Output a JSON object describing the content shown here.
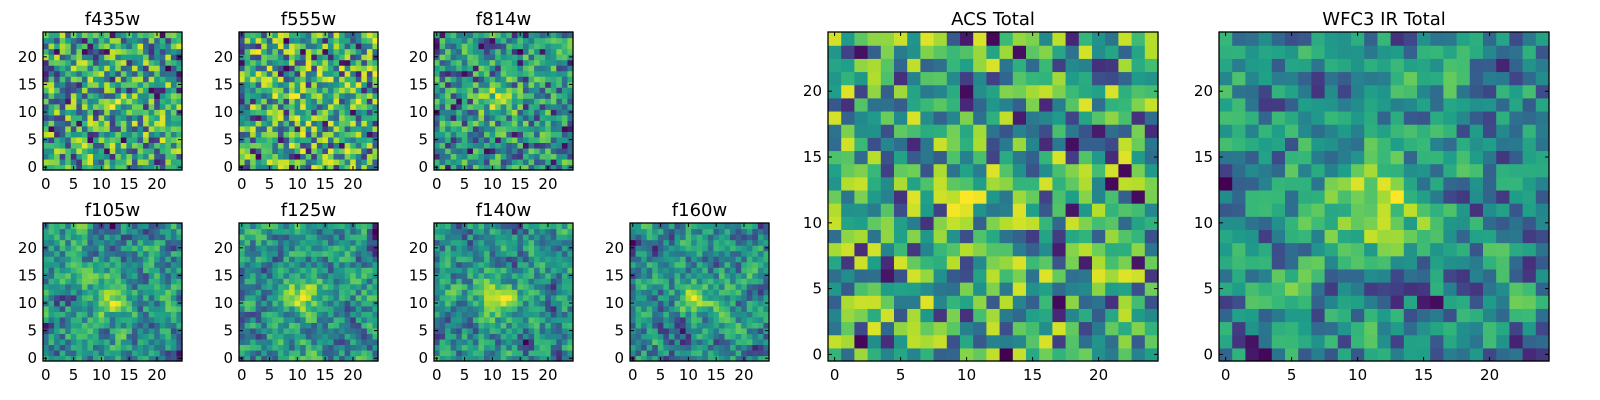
{
  "chart_data": [
    {
      "type": "heatmap",
      "title": "f435w",
      "xticks": [
        0,
        5,
        10,
        15,
        20
      ],
      "yticks": [
        0,
        5,
        10,
        15,
        20
      ],
      "xlim": [
        0,
        24
      ],
      "ylim": [
        0,
        24
      ],
      "grid_size": 25,
      "colormap": "viridis",
      "seed": 11,
      "blob_strength": 0.1,
      "blob_center": [
        12,
        12
      ],
      "smooth": 0
    },
    {
      "type": "heatmap",
      "title": "f555w",
      "xticks": [
        0,
        5,
        10,
        15,
        20
      ],
      "yticks": [
        0,
        5,
        10,
        15,
        20
      ],
      "xlim": [
        0,
        24
      ],
      "ylim": [
        0,
        24
      ],
      "grid_size": 25,
      "colormap": "viridis",
      "seed": 23,
      "blob_strength": 0.1,
      "blob_center": [
        12,
        12
      ],
      "smooth": 0
    },
    {
      "type": "heatmap",
      "title": "f814w",
      "xticks": [
        0,
        5,
        10,
        15,
        20
      ],
      "yticks": [
        0,
        5,
        10,
        15,
        20
      ],
      "xlim": [
        0,
        24
      ],
      "ylim": [
        0,
        24
      ],
      "grid_size": 25,
      "colormap": "viridis",
      "seed": 37,
      "blob_strength": 0.45,
      "blob_center": [
        11,
        12
      ],
      "smooth": 0
    },
    {
      "type": "heatmap",
      "title": "f105w",
      "xticks": [
        0,
        5,
        10,
        15,
        20
      ],
      "yticks": [
        0,
        5,
        10,
        15,
        20
      ],
      "xlim": [
        0,
        24
      ],
      "ylim": [
        0,
        24
      ],
      "grid_size": 25,
      "colormap": "viridis",
      "seed": 41,
      "blob_strength": 0.45,
      "blob_center": [
        12,
        11
      ],
      "smooth": 1
    },
    {
      "type": "heatmap",
      "title": "f125w",
      "xticks": [
        0,
        5,
        10,
        15,
        20
      ],
      "yticks": [
        0,
        5,
        10,
        15,
        20
      ],
      "xlim": [
        0,
        24
      ],
      "ylim": [
        0,
        24
      ],
      "grid_size": 25,
      "colormap": "viridis",
      "seed": 53,
      "blob_strength": 0.4,
      "blob_center": [
        11,
        11
      ],
      "smooth": 1
    },
    {
      "type": "heatmap",
      "title": "f140w",
      "xticks": [
        0,
        5,
        10,
        15,
        20
      ],
      "yticks": [
        0,
        5,
        10,
        15,
        20
      ],
      "xlim": [
        0,
        24
      ],
      "ylim": [
        0,
        24
      ],
      "grid_size": 25,
      "colormap": "viridis",
      "seed": 67,
      "blob_strength": 0.45,
      "blob_center": [
        11,
        11
      ],
      "smooth": 1
    },
    {
      "type": "heatmap",
      "title": "f160w",
      "xticks": [
        0,
        5,
        10,
        15,
        20
      ],
      "yticks": [
        0,
        5,
        10,
        15,
        20
      ],
      "xlim": [
        0,
        24
      ],
      "ylim": [
        0,
        24
      ],
      "grid_size": 25,
      "colormap": "viridis",
      "seed": 79,
      "blob_strength": 0.45,
      "blob_center": [
        12,
        11
      ],
      "smooth": 1
    },
    {
      "type": "heatmap",
      "title": "ACS Total",
      "xticks": [
        0,
        5,
        10,
        15,
        20
      ],
      "yticks": [
        0,
        5,
        10,
        15,
        20
      ],
      "xlim": [
        0,
        24
      ],
      "ylim": [
        0,
        24
      ],
      "grid_size": 25,
      "colormap": "viridis",
      "seed": 97,
      "blob_strength": 0.15,
      "blob_center": [
        11,
        12
      ],
      "smooth": 0
    },
    {
      "type": "heatmap",
      "title": "WFC3 IR Total",
      "xticks": [
        0,
        5,
        10,
        15,
        20
      ],
      "yticks": [
        0,
        5,
        10,
        15,
        20
      ],
      "xlim": [
        0,
        24
      ],
      "ylim": [
        0,
        24
      ],
      "grid_size": 25,
      "colormap": "viridis",
      "seed": 131,
      "blob_strength": 0.6,
      "blob_center": [
        11,
        11
      ],
      "smooth": 1
    }
  ],
  "colors": {
    "viridis": [
      "#440154",
      "#482878",
      "#3e4989",
      "#31688e",
      "#26828e",
      "#1f9e89",
      "#35b779",
      "#6ece58",
      "#b5de2b",
      "#fde725"
    ],
    "axis": "#000000",
    "background": "#ffffff"
  }
}
